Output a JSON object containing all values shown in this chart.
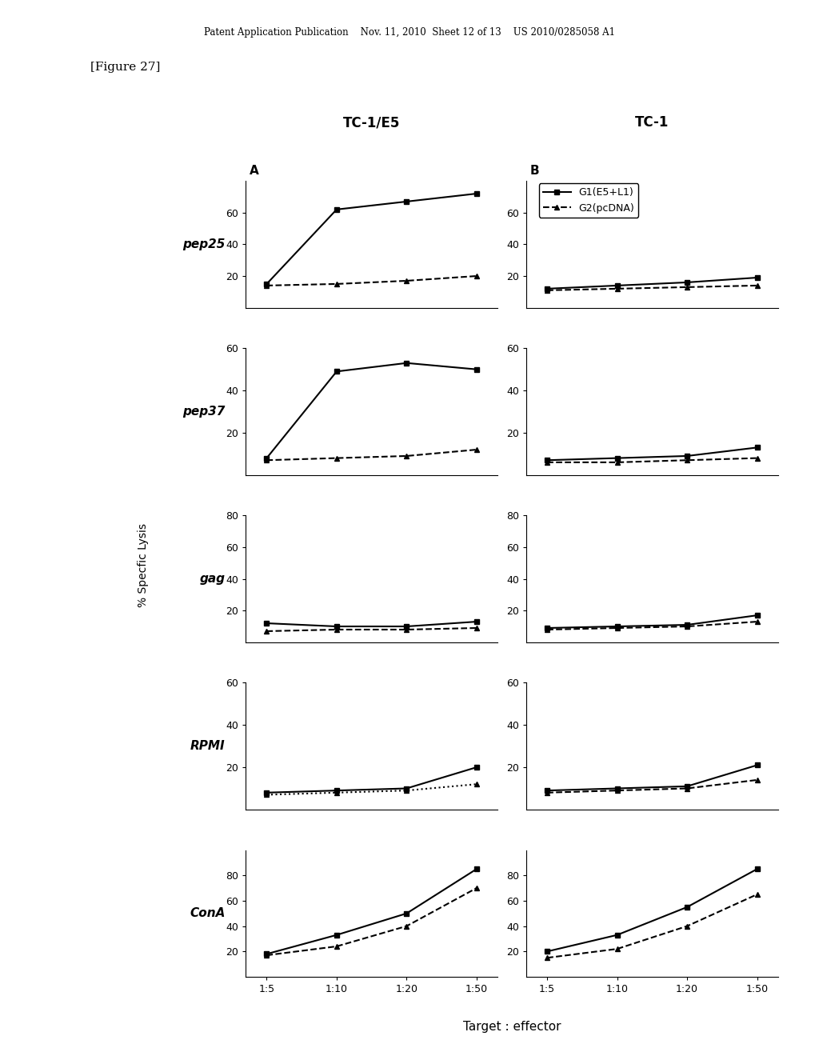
{
  "header_text": "Patent Application Publication    Nov. 11, 2010  Sheet 12 of 13    US 2010/0285058 A1",
  "figure_label": "[Figure 27]",
  "col_titles": [
    "TC-1/E5",
    "TC-1"
  ],
  "col_labels": [
    "A",
    "B"
  ],
  "row_labels": [
    "pep25",
    "pep37",
    "gag",
    "RPMI",
    "ConA"
  ],
  "ylabel": "% Specfic Lysis",
  "xlabel": "Target : effector",
  "x_ticks": [
    "1:5",
    "1:10",
    "1:20",
    "1:50"
  ],
  "rows": {
    "pep25": {
      "ylim": [
        0,
        80
      ],
      "yticks": [
        20,
        40,
        60
      ],
      "col_A": {
        "G1": [
          15,
          62,
          67,
          72
        ],
        "G2": [
          14,
          15,
          17,
          20
        ]
      },
      "col_B": {
        "G1": [
          12,
          14,
          16,
          19
        ],
        "G2": [
          11,
          12,
          13,
          14
        ]
      }
    },
    "pep37": {
      "ylim": [
        0,
        60
      ],
      "yticks": [
        20,
        40,
        60
      ],
      "col_A": {
        "G1": [
          8,
          49,
          53,
          50
        ],
        "G2": [
          7,
          8,
          9,
          12
        ]
      },
      "col_B": {
        "G1": [
          7,
          8,
          9,
          13
        ],
        "G2": [
          6,
          6,
          7,
          8
        ]
      }
    },
    "gag": {
      "ylim": [
        0,
        80
      ],
      "yticks": [
        20,
        40,
        60,
        80
      ],
      "col_A": {
        "G1": [
          12,
          10,
          10,
          13
        ],
        "G2": [
          7,
          8,
          8,
          9
        ]
      },
      "col_B": {
        "G1": [
          9,
          10,
          11,
          17
        ],
        "G2": [
          8,
          9,
          10,
          13
        ]
      }
    },
    "RPMI": {
      "ylim": [
        0,
        60
      ],
      "yticks": [
        20,
        40,
        60
      ],
      "col_A": {
        "G1": [
          8,
          9,
          10,
          20
        ],
        "G2_dotted": [
          7,
          8,
          9,
          12
        ]
      },
      "col_B": {
        "G1": [
          9,
          10,
          11,
          21
        ],
        "G2": [
          8,
          9,
          10,
          14
        ]
      }
    },
    "ConA": {
      "ylim": [
        0,
        100
      ],
      "yticks": [
        20,
        40,
        60,
        80
      ],
      "col_A": {
        "G1": [
          18,
          33,
          50,
          85
        ],
        "G2": [
          17,
          24,
          40,
          70
        ]
      },
      "col_B": {
        "G1": [
          20,
          33,
          55,
          85
        ],
        "G2": [
          15,
          22,
          40,
          65
        ]
      }
    }
  }
}
